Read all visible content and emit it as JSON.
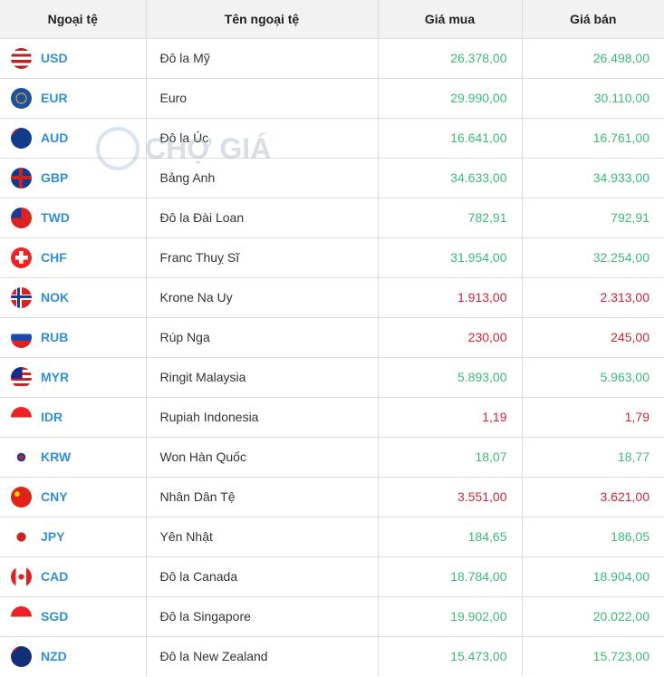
{
  "headers": [
    "Ngoại tệ",
    "Tên ngoại tệ",
    "Giá mua",
    "Giá bán"
  ],
  "watermark": "CHỢ GIÁ",
  "colors": {
    "up": "#3cba7a",
    "down": "#d0243c",
    "code": "#2f8fd8"
  },
  "rows": [
    {
      "code": "USD",
      "name": "Đô la Mỹ",
      "buy": "26.378,00",
      "sell": "26.498,00",
      "trend": "up",
      "flag": "linear-gradient(#b22 0 14%,#fff 14% 28%,#b22 28% 42%,#fff 42% 57%,#b22 57% 71%,#fff 71% 85%,#b22 85%)"
    },
    {
      "code": "EUR",
      "name": "Euro",
      "buy": "29.990,00",
      "sell": "30.110,00",
      "trend": "up",
      "flag": "radial-gradient(circle,#1e4fa0 30%,#f5c400 32% 36%,#1e4fa0 38%)"
    },
    {
      "code": "AUD",
      "name": "Đô la Úc",
      "buy": "16.641,00",
      "sell": "16.761,00",
      "trend": "up",
      "flag": "linear-gradient(135deg,#c22 0 20%,#123a8a 20%)"
    },
    {
      "code": "GBP",
      "name": "Bảng Anh",
      "buy": "34.633,00",
      "sell": "34.933,00",
      "trend": "up",
      "flag": "linear-gradient(#c22,#c22) center/100% 18% no-repeat,linear-gradient(#c22,#c22) center/18% 100% no-repeat,#123a8a"
    },
    {
      "code": "TWD",
      "name": "Đô la Đài Loan",
      "buy": "782,91",
      "sell": "792,91",
      "trend": "up",
      "flag": "linear-gradient(90deg,#1a3a9a 50%,#d22 50%) top/100% 50% no-repeat,#d22"
    },
    {
      "code": "CHF",
      "name": "Franc Thuỵ Sĩ",
      "buy": "31.954,00",
      "sell": "32.254,00",
      "trend": "up",
      "flag": "linear-gradient(#fff,#fff) center/20% 60% no-repeat,linear-gradient(#fff,#fff) center/60% 20% no-repeat,#e22"
    },
    {
      "code": "NOK",
      "name": "Krone Na Uy",
      "buy": "1.913,00",
      "sell": "2.313,00",
      "trend": "down",
      "flag": "linear-gradient(#1a3a8a,#1a3a8a) 35% 50%/14% 100% no-repeat,linear-gradient(#1a3a8a,#1a3a8a) center/100% 14% no-repeat,linear-gradient(#fff,#fff) 35% 50%/28% 100% no-repeat,linear-gradient(#fff,#fff) center/100% 28% no-repeat,#d22"
    },
    {
      "code": "RUB",
      "name": "Rúp Nga",
      "buy": "230,00",
      "sell": "245,00",
      "trend": "down",
      "flag": "linear-gradient(#fff 33%,#1a4ab0 33% 66%,#d22 66%)"
    },
    {
      "code": "MYR",
      "name": "Ringit Malaysia",
      "buy": "5.893,00",
      "sell": "5.963,00",
      "trend": "up",
      "flag": "linear-gradient(#1a2a8a,#1a2a8a) top left/55% 55% no-repeat,repeating-linear-gradient(#c22 0 3px,#fff 3px 6px)"
    },
    {
      "code": "IDR",
      "name": "Rupiah Indonesia",
      "buy": "1,19",
      "sell": "1,79",
      "trend": "down",
      "flag": "linear-gradient(#e22 50%,#fff 50%)"
    },
    {
      "code": "KRW",
      "name": "Won Hàn Quốc",
      "buy": "18,07",
      "sell": "18,77",
      "trend": "up",
      "flag": "radial-gradient(circle,#c22 0 15%,#1a3a9a 16% 28%,#fff 30%)"
    },
    {
      "code": "CNY",
      "name": "Nhân Dân Tệ",
      "buy": "3.551,00",
      "sell": "3.621,00",
      "trend": "down",
      "flag": "radial-gradient(circle at 30% 35%,#ffd400 0 12%,#e2231a 14%)"
    },
    {
      "code": "JPY",
      "name": "Yên Nhật",
      "buy": "184,65",
      "sell": "186,05",
      "trend": "up",
      "flag": "radial-gradient(circle,#c22 0 30%,#fff 32%)"
    },
    {
      "code": "CAD",
      "name": "Đô la Canada",
      "buy": "18.784,00",
      "sell": "18.904,00",
      "trend": "up",
      "flag": "radial-gradient(circle,#d22 0 18%,transparent 20%),linear-gradient(90deg,#d22 25%,#fff 25% 75%,#d22 75%)"
    },
    {
      "code": "SGD",
      "name": "Đô la Singapore",
      "buy": "19.902,00",
      "sell": "20.022,00",
      "trend": "up",
      "flag": "linear-gradient(#e22 50%,#fff 50%)"
    },
    {
      "code": "NZD",
      "name": "Đô la New Zealand",
      "buy": "15.473,00",
      "sell": "15.723,00",
      "trend": "up",
      "flag": "linear-gradient(135deg,#c22 0 20%,#12307a 20%)"
    }
  ]
}
